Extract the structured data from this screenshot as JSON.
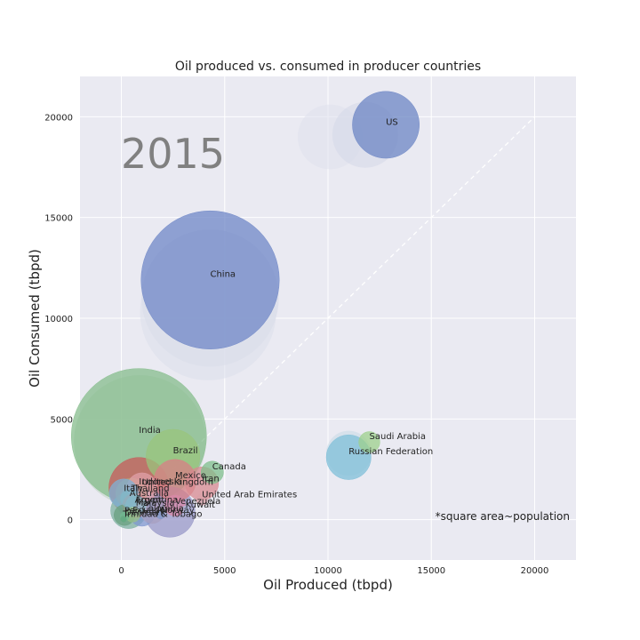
{
  "chart_data": {
    "type": "scatter",
    "title": "Oil produced vs. consumed in producer countries",
    "xlabel": "Oil Produced (tbpd)",
    "ylabel": "Oil Consumed (tbpd)",
    "xlim": [
      -2000,
      22000
    ],
    "ylim": [
      -2000,
      22000
    ],
    "xticks": [
      0,
      5000,
      10000,
      15000,
      20000
    ],
    "yticks": [
      0,
      5000,
      10000,
      15000,
      20000
    ],
    "grid": true,
    "year_label": "2015",
    "note": "*square area~population",
    "reference_line": {
      "x": [
        0,
        20000
      ],
      "y": [
        0,
        20000
      ],
      "style": "dashed",
      "color": "#ffffff"
    },
    "trail_points": [
      {
        "x": 4300,
        "y": 11000,
        "population": 1350,
        "color": "#d6d9e8"
      },
      {
        "x": 4200,
        "y": 10300,
        "population": 1330,
        "color": "#dcdfeb"
      },
      {
        "x": 10100,
        "y": 19000,
        "population": 300,
        "color": "#dfe1ec"
      },
      {
        "x": 11800,
        "y": 19100,
        "population": 310,
        "color": "#d6d9e8"
      },
      {
        "x": 900,
        "y": 3900,
        "population": 1250,
        "color": "#bfd3c4"
      },
      {
        "x": 11000,
        "y": 3300,
        "population": 145,
        "color": "#c9dbe6"
      }
    ],
    "points": [
      {
        "country": "US",
        "x": 12800,
        "y": 19600,
        "population": 321,
        "color": "#6c85c4"
      },
      {
        "country": "China",
        "x": 4300,
        "y": 11900,
        "population": 1371,
        "color": "#6f87c7"
      },
      {
        "country": "India",
        "x": 850,
        "y": 4150,
        "population": 1311,
        "color": "#86bc8c"
      },
      {
        "country": "Brazil",
        "x": 2500,
        "y": 3150,
        "population": 208,
        "color": "#9ac47c"
      },
      {
        "country": "Saudi Arabia",
        "x": 12000,
        "y": 3850,
        "population": 32,
        "color": "#9ed08c"
      },
      {
        "country": "Russian Federation",
        "x": 11000,
        "y": 3100,
        "population": 144,
        "color": "#7fbfd8"
      },
      {
        "country": "Canada",
        "x": 4400,
        "y": 2350,
        "population": 36,
        "color": "#7fbf8c"
      },
      {
        "country": "Mexico",
        "x": 2600,
        "y": 1950,
        "population": 127,
        "color": "#d87f86"
      },
      {
        "country": "Iran",
        "x": 3900,
        "y": 1800,
        "population": 79,
        "color": "#d88a90"
      },
      {
        "country": "Indonesia",
        "x": 850,
        "y": 1600,
        "population": 258,
        "color": "#c85a5a"
      },
      {
        "country": "United Kingdom",
        "x": 1000,
        "y": 1580,
        "population": 65,
        "color": "#e0a0a8"
      },
      {
        "country": "Italy",
        "x": 120,
        "y": 1300,
        "population": 61,
        "color": "#7fb2d6"
      },
      {
        "country": "Thailand",
        "x": 480,
        "y": 1300,
        "population": 68,
        "color": "#b8a070"
      },
      {
        "country": "United Arab Emirates",
        "x": 3900,
        "y": 1000,
        "population": 9,
        "color": "#d8a0a8"
      },
      {
        "country": "Australia",
        "x": 400,
        "y": 1050,
        "population": 24,
        "color": "#80b8c8"
      },
      {
        "country": "Argentina",
        "x": 650,
        "y": 700,
        "population": 43,
        "color": "#d08890"
      },
      {
        "country": "Venezuela",
        "x": 2600,
        "y": 700,
        "population": 31,
        "color": "#d888a8"
      },
      {
        "country": "Kuwait",
        "x": 3100,
        "y": 500,
        "population": 4,
        "color": "#a8b8d8"
      },
      {
        "country": "Malaysia",
        "x": 700,
        "y": 700,
        "population": 30,
        "color": "#90c0d0"
      },
      {
        "country": "Egypt",
        "x": 700,
        "y": 800,
        "population": 92,
        "color": "#a0b0d8"
      },
      {
        "country": "Colombia",
        "x": 1000,
        "y": 320,
        "population": 48,
        "color": "#8098d0"
      },
      {
        "country": "Norway",
        "x": 1900,
        "y": 250,
        "population": 5,
        "color": "#8098c8"
      },
      {
        "country": "Ecuador",
        "x": 550,
        "y": 250,
        "population": 16,
        "color": "#98c088"
      },
      {
        "country": "Peru",
        "x": 150,
        "y": 230,
        "population": 31,
        "color": "#6aa080"
      },
      {
        "country": "Denmark",
        "x": 160,
        "y": 160,
        "population": 6,
        "color": "#70b890"
      },
      {
        "country": "Trinidad & Tobago",
        "x": 80,
        "y": 40,
        "population": 1,
        "color": "#6aa880"
      },
      {
        "country": "Nigeria",
        "x": 2350,
        "y": 380,
        "population": 182,
        "color": "#9898c8"
      },
      {
        "country": "Algeria",
        "x": 1500,
        "y": 400,
        "population": 40,
        "color": "#a8a0c0"
      },
      {
        "country": "Vietnam",
        "x": 350,
        "y": 450,
        "population": 92,
        "color": "#7db0a0"
      },
      {
        "country": "Brunei",
        "x": 120,
        "y": 20,
        "population": 0.4,
        "color": "#62a882"
      }
    ],
    "labels": [
      {
        "text": "US",
        "x": 12800,
        "y": 19600
      },
      {
        "text": "China",
        "x": 4300,
        "y": 12050
      },
      {
        "text": "India",
        "x": 850,
        "y": 4300
      },
      {
        "text": "Brazil",
        "x": 2500,
        "y": 3300
      },
      {
        "text": "Saudi Arabia",
        "x": 12000,
        "y": 4000
      },
      {
        "text": "Russian Federation",
        "x": 11000,
        "y": 3250
      },
      {
        "text": "Canada",
        "x": 4400,
        "y": 2500
      },
      {
        "text": "Mexico",
        "x": 2600,
        "y": 2050
      },
      {
        "text": "Iran",
        "x": 3900,
        "y": 1900
      },
      {
        "text": "Indonesia",
        "x": 850,
        "y": 1750
      },
      {
        "text": "United Kingdom",
        "x": 1000,
        "y": 1730
      },
      {
        "text": "Italy",
        "x": 120,
        "y": 1420
      },
      {
        "text": "Thailand",
        "x": 480,
        "y": 1420
      },
      {
        "text": "United Arab Emirates",
        "x": 3900,
        "y": 1110
      },
      {
        "text": "Australia",
        "x": 400,
        "y": 1170
      },
      {
        "text": "Argentina",
        "x": 650,
        "y": 850
      },
      {
        "text": "Venezuela",
        "x": 2600,
        "y": 780
      },
      {
        "text": "Kuwait",
        "x": 3100,
        "y": 600
      },
      {
        "text": "Malaysia",
        "x": 700,
        "y": 700
      },
      {
        "text": "Egypt",
        "x": 700,
        "y": 840
      },
      {
        "text": "Colombia",
        "x": 1000,
        "y": 420
      },
      {
        "text": "Norway",
        "x": 1900,
        "y": 330
      },
      {
        "text": "Ecuador",
        "x": 550,
        "y": 330
      },
      {
        "text": "Peru",
        "x": 150,
        "y": 320
      },
      {
        "text": "Denmark",
        "x": 160,
        "y": 230
      },
      {
        "text": "Trinidad & Tobago",
        "x": 80,
        "y": 140
      }
    ]
  }
}
